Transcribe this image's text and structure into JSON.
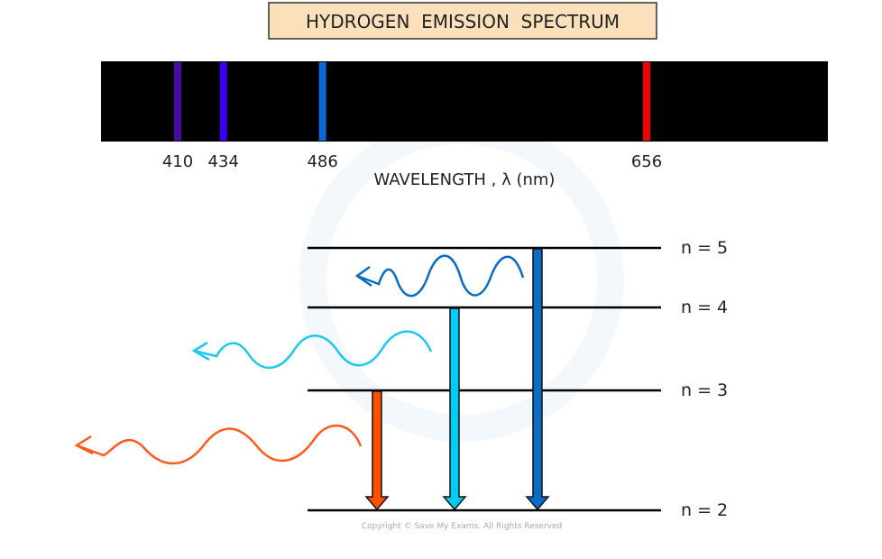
{
  "title": "HYDROGEN  EMISSION  SPECTRUM",
  "spectrum": {
    "axis_label": "WAVELENGTH , λ (nm)",
    "lines": [
      {
        "label": "410",
        "color": "#4a0aa6"
      },
      {
        "label": "434",
        "color": "#3b00f2"
      },
      {
        "label": "486",
        "color": "#0b68d6"
      },
      {
        "label": "656",
        "color": "#f00000"
      }
    ]
  },
  "levels": [
    {
      "label": "n = 5"
    },
    {
      "label": "n = 4"
    },
    {
      "label": "n = 3"
    },
    {
      "label": "n = 2"
    }
  ],
  "transitions": [
    {
      "from": 3,
      "to": 2,
      "color": "#ff5000"
    },
    {
      "from": 4,
      "to": 2,
      "color": "#00ccf5"
    },
    {
      "from": 5,
      "to": 2,
      "color": "#0a6cc4"
    }
  ],
  "copyright": "Copyright © Save My Exams. All Rights Reserved"
}
